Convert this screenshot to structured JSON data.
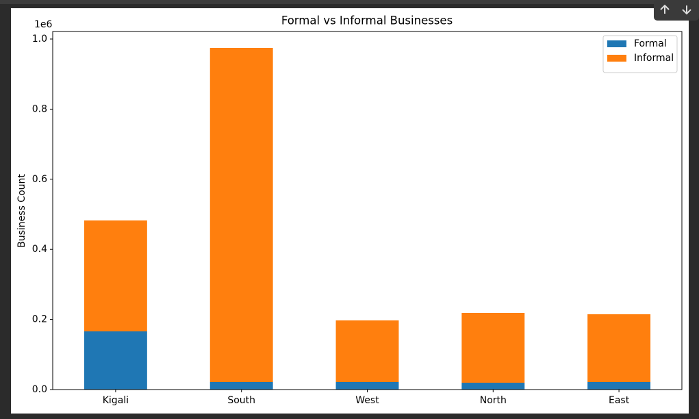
{
  "chart_data": {
    "type": "bar",
    "stacked": true,
    "title": "Formal vs Informal Businesses",
    "y_label": "Business Count",
    "y_offset_label": "1e6",
    "categories": [
      "Kigali",
      "South",
      "West",
      "North",
      "East"
    ],
    "series": [
      {
        "name": "Formal",
        "color": "#1f77b4",
        "values": [
          166000,
          21500,
          21500,
          19500,
          21500
        ]
      },
      {
        "name": "Informal",
        "color": "#ff7f0e",
        "values": [
          316400,
          953100,
          175800,
          199300,
          193300
        ]
      }
    ],
    "ylim": [
      0,
      1021500
    ],
    "yticks": [
      {
        "value": 0,
        "label": "0.0"
      },
      {
        "value": 200000,
        "label": "0.2"
      },
      {
        "value": 400000,
        "label": "0.4"
      },
      {
        "value": 600000,
        "label": "0.6"
      },
      {
        "value": 800000,
        "label": "0.8"
      },
      {
        "value": 1000000,
        "label": "1.0"
      }
    ],
    "legend": "upper right"
  }
}
